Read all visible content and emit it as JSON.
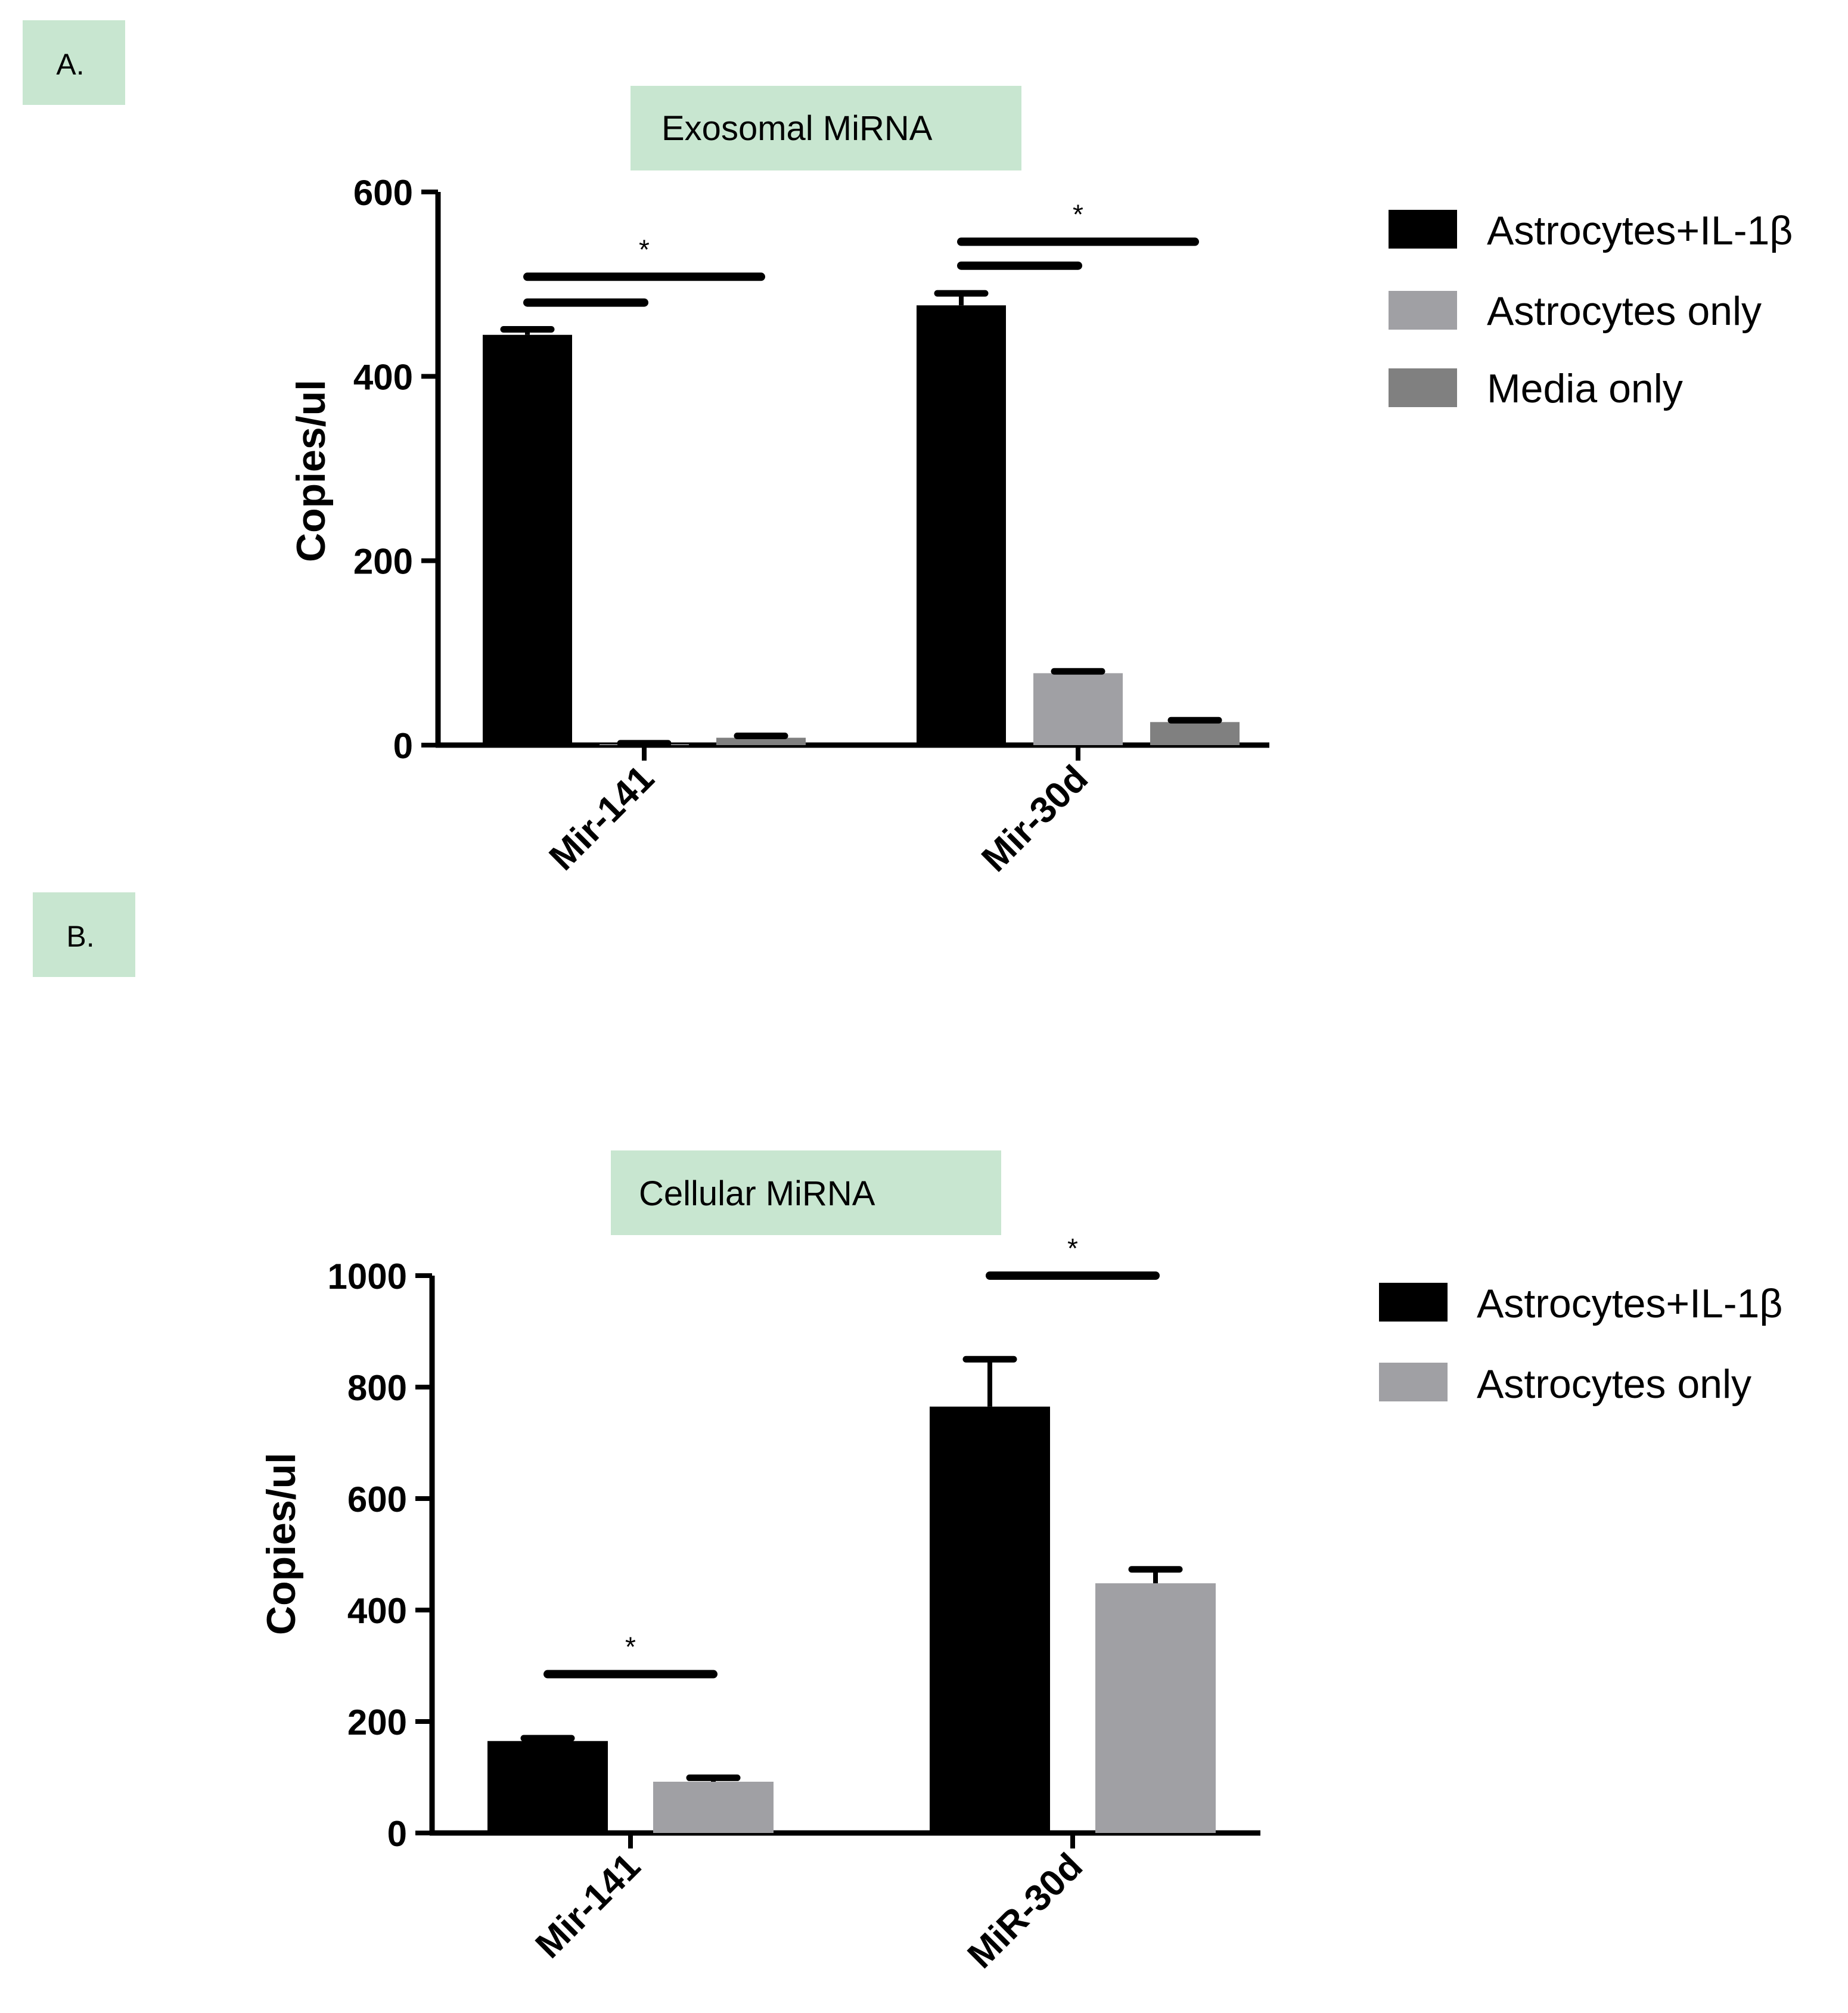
{
  "colors": {
    "label_box": "#c8e6d0",
    "astro_il1b": "#000000",
    "astro_only": "#a0a0a4",
    "media_only": "#808080",
    "axis": "#000000"
  },
  "chart_data": [
    {
      "type": "bar",
      "panel_label": "A.",
      "title": "Exosomal MiRNA",
      "xlabel": "",
      "ylabel": "Copies/ul",
      "ylim": [
        0,
        600
      ],
      "yticks": [
        0,
        200,
        400,
        600
      ],
      "categories": [
        "Mir-141",
        "Mir-30d"
      ],
      "series": [
        {
          "name": "Astrocytes+IL-1β",
          "color": "#000000",
          "values": [
            445,
            477
          ],
          "errors": [
            6,
            13
          ]
        },
        {
          "name": "Astrocytes only",
          "color": "#a0a0a4",
          "values": [
            1,
            78
          ],
          "errors": [
            1,
            2
          ]
        },
        {
          "name": "Media only",
          "color": "#808080",
          "values": [
            8,
            25
          ],
          "errors": [
            2,
            2
          ]
        }
      ],
      "significance": [
        {
          "category": 0,
          "from": 0,
          "to": 1,
          "value": 480,
          "marker": ""
        },
        {
          "category": 0,
          "from": 0,
          "to": 2,
          "value": 508,
          "marker": "*"
        },
        {
          "category": 1,
          "from": 0,
          "to": 1,
          "value": 520,
          "marker": ""
        },
        {
          "category": 1,
          "from": 0,
          "to": 2,
          "value": 546,
          "marker": "*"
        }
      ],
      "legend": {
        "position": "top-right"
      },
      "grid": false
    },
    {
      "type": "bar",
      "panel_label": "B.",
      "title": "Cellular MiRNA",
      "xlabel": "",
      "ylabel": "Copies/ul",
      "ylim": [
        0,
        1000
      ],
      "yticks": [
        0,
        200,
        400,
        600,
        800,
        1000
      ],
      "categories": [
        "Mir-141",
        "MiR-30d"
      ],
      "series": [
        {
          "name": "Astrocytes+IL-1β",
          "color": "#000000",
          "values": [
            165,
            765
          ],
          "errors": [
            5,
            85
          ]
        },
        {
          "name": "Astrocytes only",
          "color": "#a0a0a4",
          "values": [
            92,
            448
          ],
          "errors": [
            7,
            25
          ]
        }
      ],
      "significance": [
        {
          "category": 0,
          "from": 0,
          "to": 1,
          "value": 285,
          "marker": "*"
        },
        {
          "category": 1,
          "from": 0,
          "to": 1,
          "value": 1000,
          "marker": "*"
        }
      ],
      "legend": {
        "position": "top-right"
      },
      "grid": false
    }
  ]
}
